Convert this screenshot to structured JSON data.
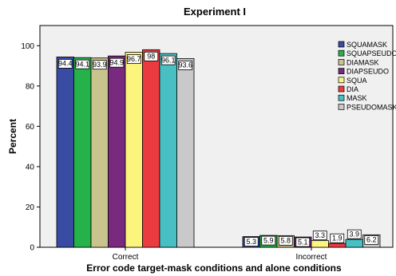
{
  "chart_data": {
    "type": "bar",
    "title": "Experiment I",
    "xlabel": "Error code target-mask conditions and alone conditions",
    "ylabel": "Percent",
    "ylim": [
      0,
      110
    ],
    "yticks": [
      0,
      20,
      40,
      60,
      80,
      100
    ],
    "grid": false,
    "legend_position": "top-right",
    "categories": [
      "Correct",
      "Incorrect"
    ],
    "series": [
      {
        "name": "SQUAMASK",
        "color": "#3a4ba3",
        "values": [
          94.4,
          5.3
        ],
        "labels": [
          "94.4",
          "5.3"
        ]
      },
      {
        "name": "SQUAPSEUDO",
        "color": "#26b24b",
        "values": [
          94.1,
          5.9
        ],
        "labels": [
          "94.1",
          "5.9"
        ]
      },
      {
        "name": "DIAMASK",
        "color": "#c9c48d",
        "values": [
          93.9,
          5.8
        ],
        "labels": [
          "93.9",
          "5.8"
        ]
      },
      {
        "name": "DIAPSEUDO",
        "color": "#7a2a7e",
        "values": [
          94.9,
          5.1
        ],
        "labels": [
          "94.9",
          "5.1"
        ]
      },
      {
        "name": "SQUA",
        "color": "#fbf57d",
        "values": [
          96.7,
          3.3
        ],
        "labels": [
          "96.7",
          "3.3"
        ]
      },
      {
        "name": "DIA",
        "color": "#ec3a41",
        "values": [
          98,
          1.9
        ],
        "labels": [
          "98",
          "1.9"
        ]
      },
      {
        "name": "MASK",
        "color": "#48bfc3",
        "values": [
          96.1,
          3.9
        ],
        "labels": [
          "96.1",
          "3.9"
        ]
      },
      {
        "name": "PSEUDOMASK",
        "color": "#c9c9c9",
        "values": [
          93.6,
          6.2
        ],
        "labels": [
          "93.6",
          "6.2"
        ]
      }
    ]
  }
}
